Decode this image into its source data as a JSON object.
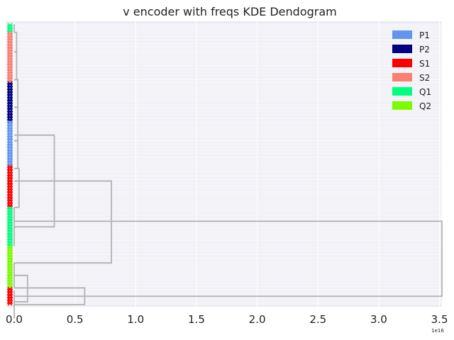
{
  "chart_data": {
    "type": "dendrogram",
    "orientation": "horizontal",
    "title": "v encoder with freqs KDE Dendogram",
    "x_ticks": [
      "0.0",
      "0.5",
      "1.0",
      "1.5",
      "2.0",
      "2.5",
      "3.0",
      "3.5"
    ],
    "x_tick_values": [
      0.0,
      0.5,
      1.0,
      1.5,
      2.0,
      2.5,
      3.0,
      3.5
    ],
    "xlim": [
      -0.07,
      3.52
    ],
    "x_offset_label": "1e16",
    "grid": true,
    "legend_position": "top-right",
    "legend": [
      {
        "label": "P1",
        "color": "#6495ED"
      },
      {
        "label": "P2",
        "color": "#000080"
      },
      {
        "label": "S1",
        "color": "#FF0000"
      },
      {
        "label": "S2",
        "color": "#FA8072"
      },
      {
        "label": "Q1",
        "color": "#00FF7F"
      },
      {
        "label": "Q2",
        "color": "#7CFC00"
      }
    ],
    "leaf_groups": [
      {
        "label": "Q1",
        "color": "#00FF7F",
        "count": 3
      },
      {
        "label": "S2",
        "color": "#FA8072",
        "count": 18
      },
      {
        "label": "P2",
        "color": "#000080",
        "count": 14
      },
      {
        "label": "P1",
        "color": "#6495ED",
        "count": 16
      },
      {
        "label": "S1",
        "color": "#FF0000",
        "count": 15
      },
      {
        "label": "Q1",
        "color": "#00FF7F",
        "count": 14
      },
      {
        "label": "Q2",
        "color": "#7CFC00",
        "count": 15
      },
      {
        "label": "S1",
        "color": "#FF0000",
        "count": 6
      }
    ],
    "merges": [
      {
        "y": [
          0.0,
          3.0
        ],
        "x": 0.0
      },
      {
        "y": [
          3.0,
          10.0
        ],
        "x": 0.02
      },
      {
        "y": [
          10.0,
          20.0
        ],
        "x": 0.02
      },
      {
        "y": [
          20.0,
          30.0
        ],
        "x": 0.03
      },
      {
        "y": [
          30.0,
          42.0
        ],
        "x": 0.03
      },
      {
        "y": [
          42.0,
          52.0
        ],
        "x": 0.03
      },
      {
        "y": [
          52.0,
          66.0
        ],
        "x": 0.04
      },
      {
        "y": [
          66.0,
          80.0
        ],
        "x": 0.0
      },
      {
        "y": [
          40.0,
          73.0
        ],
        "x": 0.33
      },
      {
        "y": [
          56.5,
          86.0
        ],
        "x": 0.8
      },
      {
        "y": [
          86.0,
          95.0
        ],
        "x": 0.0
      },
      {
        "y": [
          90.5,
          100.0
        ],
        "x": 0.11
      },
      {
        "y": [
          96.0,
          106.0
        ],
        "x": 0.0
      },
      {
        "y": [
          95.0,
          101.0
        ],
        "x": 0.58
      },
      {
        "y": [
          71.0,
          98.0
        ],
        "x": 3.52
      }
    ]
  }
}
